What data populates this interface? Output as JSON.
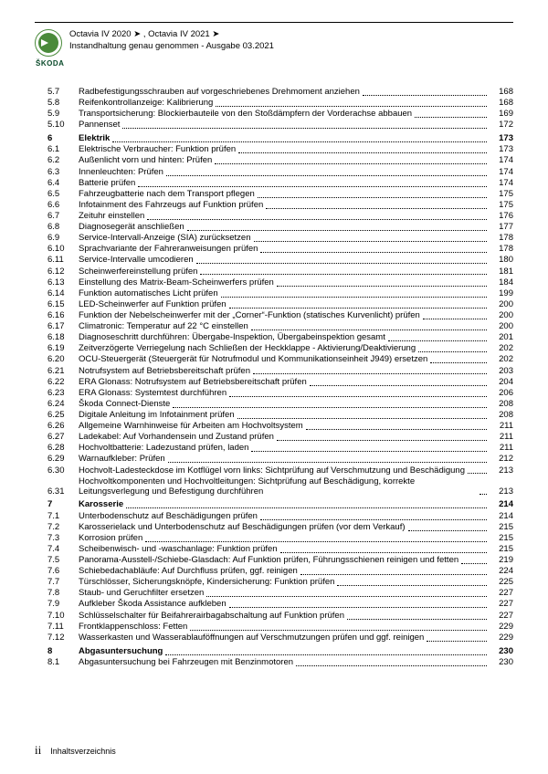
{
  "brand_name": "ŠKODA",
  "header": {
    "line1": "Octavia IV 2020 ➤ , Octavia IV 2021 ➤",
    "line2": "Instandhaltung genau genommen - Ausgabe 03.2021"
  },
  "footer": {
    "page_roman": "ii",
    "label": "Inhaltsverzeichnis"
  },
  "toc": [
    {
      "num": "5.7",
      "title": "Radbefestigungsschrauben auf vorgeschriebenes Drehmoment anziehen",
      "page": "168"
    },
    {
      "num": "5.8",
      "title": "Reifenkontrollanzeige: Kalibrierung",
      "page": "168"
    },
    {
      "num": "5.9",
      "title": "Transportsicherung: Blockierbauteile von den Stoßdämpfern der Vorderachse abbauen",
      "page": "169"
    },
    {
      "num": "5.10",
      "title": "Pannenset",
      "page": "172"
    },
    {
      "num": "6",
      "title": "Elektrik",
      "page": "173",
      "section": true
    },
    {
      "num": "6.1",
      "title": "Elektrische Verbraucher: Funktion prüfen",
      "page": "173"
    },
    {
      "num": "6.2",
      "title": "Außenlicht vorn und hinten: Prüfen",
      "page": "174"
    },
    {
      "num": "6.3",
      "title": "Innenleuchten: Prüfen",
      "page": "174"
    },
    {
      "num": "6.4",
      "title": "Batterie prüfen",
      "page": "174"
    },
    {
      "num": "6.5",
      "title": "Fahrzeugbatterie nach dem Transport pflegen",
      "page": "175"
    },
    {
      "num": "6.6",
      "title": "Infotainment des Fahrzeugs auf Funktion prüfen",
      "page": "175"
    },
    {
      "num": "6.7",
      "title": "Zeituhr einstellen",
      "page": "176"
    },
    {
      "num": "6.8",
      "title": "Diagnosegerät anschließen",
      "page": "177"
    },
    {
      "num": "6.9",
      "title": "Service-Intervall-Anzeige (SIA) zurücksetzen",
      "page": "178"
    },
    {
      "num": "6.10",
      "title": "Sprachvariante der Fahreranweisungen prüfen",
      "page": "178"
    },
    {
      "num": "6.11",
      "title": "Service-Intervalle umcodieren",
      "page": "180"
    },
    {
      "num": "6.12",
      "title": "Scheinwerfereinstellung prüfen",
      "page": "181"
    },
    {
      "num": "6.13",
      "title": "Einstellung des Matrix-Beam-Scheinwerfers prüfen",
      "page": "184"
    },
    {
      "num": "6.14",
      "title": "Funktion automatisches Licht prüfen",
      "page": "199"
    },
    {
      "num": "6.15",
      "title": "LED-Scheinwerfer auf Funktion prüfen",
      "page": "200"
    },
    {
      "num": "6.16",
      "title": "Funktion der Nebelscheinwerfer mit der „Corner“-Funktion (statisches Kurvenlicht) prüfen",
      "page": "200"
    },
    {
      "num": "6.17",
      "title": "Climatronic: Temperatur auf 22 °C einstellen",
      "page": "200"
    },
    {
      "num": "6.18",
      "title": "Diagnoseschritt durchführen: Übergabe-Inspektion, Übergabeinspektion gesamt",
      "page": "201"
    },
    {
      "num": "6.19",
      "title": "Zeitverzögerte Verriegelung nach Schließen der Heckklappe - Aktivierung/Deaktivierung",
      "page": "202"
    },
    {
      "num": "6.20",
      "title": "OCU-Steuergerät (Steuergerät für Notrufmodul und Kommunikationseinheit J949) ersetzen",
      "page": "202",
      "multiline": true
    },
    {
      "num": "6.21",
      "title": "Notrufsystem auf Betriebsbereitschaft prüfen",
      "page": "203"
    },
    {
      "num": "6.22",
      "title": "ERA Glonass: Notrufsystem auf Betriebsbereitschaft prüfen",
      "page": "204"
    },
    {
      "num": "6.23",
      "title": "ERA Glonass: Systemtest durchführen",
      "page": "206"
    },
    {
      "num": "6.24",
      "title": "Škoda Connect-Dienste",
      "page": "208"
    },
    {
      "num": "6.25",
      "title": "Digitale Anleitung im Infotainment prüfen",
      "page": "208"
    },
    {
      "num": "6.26",
      "title": "Allgemeine Warnhinweise für Arbeiten am Hochvoltsystem",
      "page": "211"
    },
    {
      "num": "6.27",
      "title": "Ladekabel: Auf Vorhandensein und Zustand prüfen",
      "page": "211"
    },
    {
      "num": "6.28",
      "title": "Hochvoltbatterie: Ladezustand prüfen, laden",
      "page": "211"
    },
    {
      "num": "6.29",
      "title": "Warnaufkleber: Prüfen",
      "page": "212"
    },
    {
      "num": "6.30",
      "title": "Hochvolt-Ladesteckdose im Kotflügel vorn links: Sichtprüfung auf Verschmutzung und Beschädigung",
      "page": "213",
      "multiline": true
    },
    {
      "num": "6.31",
      "title": "Hochvoltkomponenten und Hochvoltleitungen: Sichtprüfung auf Beschädigung, korrekte Leitungsverlegung und Befestigung durchführen",
      "page": "213",
      "multiline": true
    },
    {
      "num": "7",
      "title": "Karosserie",
      "page": "214",
      "section": true
    },
    {
      "num": "7.1",
      "title": "Unterbodenschutz auf Beschädigungen prüfen",
      "page": "214"
    },
    {
      "num": "7.2",
      "title": "Karosserielack und Unterbodenschutz auf Beschädigungen prüfen (vor dem Verkauf)",
      "page": "215"
    },
    {
      "num": "7.3",
      "title": "Korrosion prüfen",
      "page": "215"
    },
    {
      "num": "7.4",
      "title": "Scheibenwisch- und -waschanlage: Funktion prüfen",
      "page": "215"
    },
    {
      "num": "7.5",
      "title": "Panorama-Ausstell-/Schiebe-Glasdach: Auf Funktion prüfen, Führungsschienen reinigen und fetten",
      "page": "219",
      "multiline": true
    },
    {
      "num": "7.6",
      "title": "Schiebedachabläufe: Auf Durchfluss prüfen, ggf. reinigen",
      "page": "224"
    },
    {
      "num": "7.7",
      "title": "Türschlösser, Sicherungsknöpfe, Kindersicherung: Funktion prüfen",
      "page": "225"
    },
    {
      "num": "7.8",
      "title": "Staub- und Geruchfilter ersetzen",
      "page": "227"
    },
    {
      "num": "7.9",
      "title": "Aufkleber Škoda Assistance aufkleben",
      "page": "227"
    },
    {
      "num": "7.10",
      "title": "Schlüsselschalter für Beifahrerairbagabschaltung auf Funktion prüfen",
      "page": "227"
    },
    {
      "num": "7.11",
      "title": "Frontklappenschloss: Fetten",
      "page": "229"
    },
    {
      "num": "7.12",
      "title": "Wasserkasten und Wasserablauföffnungen auf Verschmutzungen prüfen und ggf. reinigen",
      "page": "229",
      "multiline": true
    },
    {
      "num": "8",
      "title": "Abgasuntersuchung",
      "page": "230",
      "section": true
    },
    {
      "num": "8.1",
      "title": "Abgasuntersuchung bei Fahrzeugen mit Benzinmotoren",
      "page": "230"
    }
  ]
}
